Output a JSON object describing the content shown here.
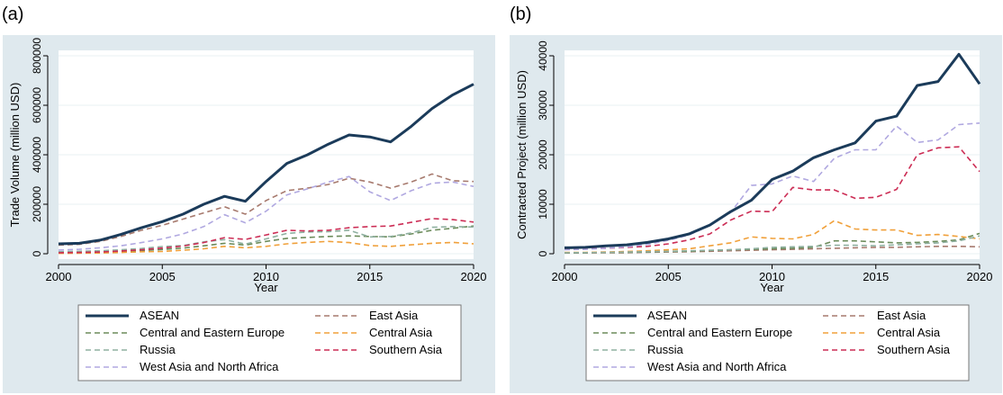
{
  "colors": {
    "panel_bg": "#dfe9ee",
    "plot_bg": "#ffffff",
    "axis": "#000000",
    "grid": "#eaf0f3"
  },
  "chart_data": [
    {
      "type": "line",
      "panel_label": "(a)",
      "title": "",
      "xlabel": "Year",
      "ylabel": "Trade Volume (million USD)",
      "xlim": [
        2000,
        2020
      ],
      "ylim": [
        0,
        800000
      ],
      "x_ticks": [
        2000,
        2005,
        2010,
        2015,
        2020
      ],
      "y_ticks": [
        0,
        200000,
        400000,
        600000,
        800000
      ],
      "grid": true,
      "legend": "bottom",
      "x": [
        2000,
        2001,
        2002,
        2003,
        2004,
        2005,
        2006,
        2007,
        2008,
        2009,
        2010,
        2011,
        2012,
        2013,
        2014,
        2015,
        2016,
        2017,
        2018,
        2019,
        2020
      ],
      "series": [
        {
          "name": "ASEAN",
          "color": "#1b3b5a",
          "style": "solid",
          "values": [
            40000,
            42000,
            55000,
            78000,
            105000,
            130000,
            160000,
            200000,
            232000,
            212000,
            292000,
            365000,
            400000,
            443000,
            480000,
            472000,
            452000,
            515000,
            587000,
            642000,
            685000
          ]
        },
        {
          "name": "East Asia",
          "color": "#a77a6e",
          "style": "dashed",
          "values": [
            35000,
            38000,
            50000,
            70000,
            95000,
            115000,
            140000,
            165000,
            190000,
            160000,
            215000,
            255000,
            265000,
            280000,
            305000,
            290000,
            265000,
            290000,
            322000,
            295000,
            292000
          ]
        },
        {
          "name": "Central and Eastern Europe",
          "color": "#6b8b5a",
          "style": "dashed",
          "values": [
            5000,
            6000,
            7000,
            9000,
            13000,
            17000,
            23000,
            32000,
            42000,
            35000,
            50000,
            62000,
            66000,
            70000,
            72000,
            70000,
            68000,
            80000,
            95000,
            103000,
            112000
          ]
        },
        {
          "name": "Central Asia",
          "color": "#f0a03a",
          "style": "dashed",
          "values": [
            1500,
            2000,
            3000,
            5000,
            8000,
            9000,
            14000,
            20000,
            30000,
            24000,
            30000,
            40000,
            46000,
            50000,
            45000,
            33000,
            30000,
            36000,
            42000,
            46000,
            40000
          ]
        },
        {
          "name": "Russia",
          "color": "#8fb0a0",
          "style": "dashed",
          "values": [
            8000,
            10000,
            12000,
            16000,
            21000,
            29000,
            33000,
            48000,
            57000,
            39000,
            60000,
            82000,
            88000,
            89000,
            95000,
            68000,
            70000,
            84000,
            107000,
            110000,
            108000
          ]
        },
        {
          "name": "Southern Asia",
          "color": "#cc2d55",
          "style": "dashed",
          "values": [
            4000,
            5000,
            7000,
            11000,
            16000,
            23000,
            31000,
            45000,
            65000,
            58000,
            76000,
            95000,
            92000,
            95000,
            105000,
            110000,
            112000,
            127000,
            142000,
            138000,
            128000
          ]
        },
        {
          "name": "West Asia and North Africa",
          "color": "#b0a8e0",
          "style": "dashed",
          "values": [
            15000,
            18000,
            24000,
            32000,
            45000,
            60000,
            80000,
            110000,
            158000,
            125000,
            172000,
            238000,
            262000,
            290000,
            312000,
            250000,
            215000,
            255000,
            285000,
            290000,
            272000
          ]
        }
      ]
    },
    {
      "type": "line",
      "panel_label": "(b)",
      "title": "",
      "xlabel": "Year",
      "ylabel": "Contracted Project (million USD)",
      "xlim": [
        2000,
        2020
      ],
      "ylim": [
        0,
        40000
      ],
      "x_ticks": [
        2000,
        2005,
        2010,
        2015,
        2020
      ],
      "y_ticks": [
        0,
        10000,
        20000,
        30000,
        40000
      ],
      "grid": true,
      "legend": "bottom",
      "x": [
        2000,
        2001,
        2002,
        2003,
        2004,
        2005,
        2006,
        2007,
        2008,
        2009,
        2010,
        2011,
        2012,
        2013,
        2014,
        2015,
        2016,
        2017,
        2018,
        2019,
        2020
      ],
      "series": [
        {
          "name": "ASEAN",
          "color": "#1b3b5a",
          "style": "solid",
          "values": [
            1200,
            1300,
            1600,
            1800,
            2300,
            3000,
            4000,
            5800,
            8500,
            10800,
            15000,
            16700,
            19400,
            21000,
            22400,
            26800,
            27800,
            34000,
            34800,
            40300,
            34300
          ]
        },
        {
          "name": "East Asia",
          "color": "#a77a6e",
          "style": "dashed",
          "values": [
            150,
            150,
            200,
            200,
            300,
            350,
            400,
            500,
            600,
            700,
            800,
            900,
            1000,
            1100,
            1200,
            1300,
            1300,
            1400,
            1500,
            1500,
            1400
          ]
        },
        {
          "name": "Central and Eastern Europe",
          "color": "#6b8b5a",
          "style": "dashed",
          "values": [
            200,
            200,
            250,
            300,
            350,
            450,
            500,
            650,
            800,
            900,
            1000,
            1100,
            1300,
            2600,
            2600,
            2400,
            2200,
            2300,
            2500,
            2800,
            4100
          ]
        },
        {
          "name": "Central Asia",
          "color": "#f0a03a",
          "style": "dashed",
          "values": [
            250,
            280,
            350,
            450,
            600,
            800,
            1000,
            1600,
            2200,
            3400,
            3100,
            3000,
            3900,
            6700,
            5000,
            4800,
            4800,
            3700,
            3900,
            3500,
            3000
          ]
        },
        {
          "name": "Russia",
          "color": "#8fb0a0",
          "style": "dashed",
          "values": [
            200,
            220,
            280,
            350,
            420,
            500,
            600,
            700,
            800,
            1000,
            1300,
            1400,
            1500,
            1700,
            1700,
            1600,
            1800,
            2000,
            2200,
            2600,
            3600
          ]
        },
        {
          "name": "Southern Asia",
          "color": "#cc2d55",
          "style": "dashed",
          "values": [
            900,
            1000,
            1100,
            1300,
            1500,
            2000,
            2800,
            4000,
            6800,
            8600,
            8500,
            13400,
            12900,
            12900,
            11200,
            11400,
            13000,
            20000,
            21400,
            21600,
            16600
          ]
        },
        {
          "name": "West Asia and North Africa",
          "color": "#b0a8e0",
          "style": "dashed",
          "values": [
            800,
            900,
            1100,
            1400,
            1900,
            2700,
            3800,
            5700,
            8300,
            13800,
            14100,
            15700,
            14600,
            19300,
            21000,
            21000,
            25800,
            22500,
            23000,
            26100,
            26400
          ]
        }
      ]
    }
  ]
}
